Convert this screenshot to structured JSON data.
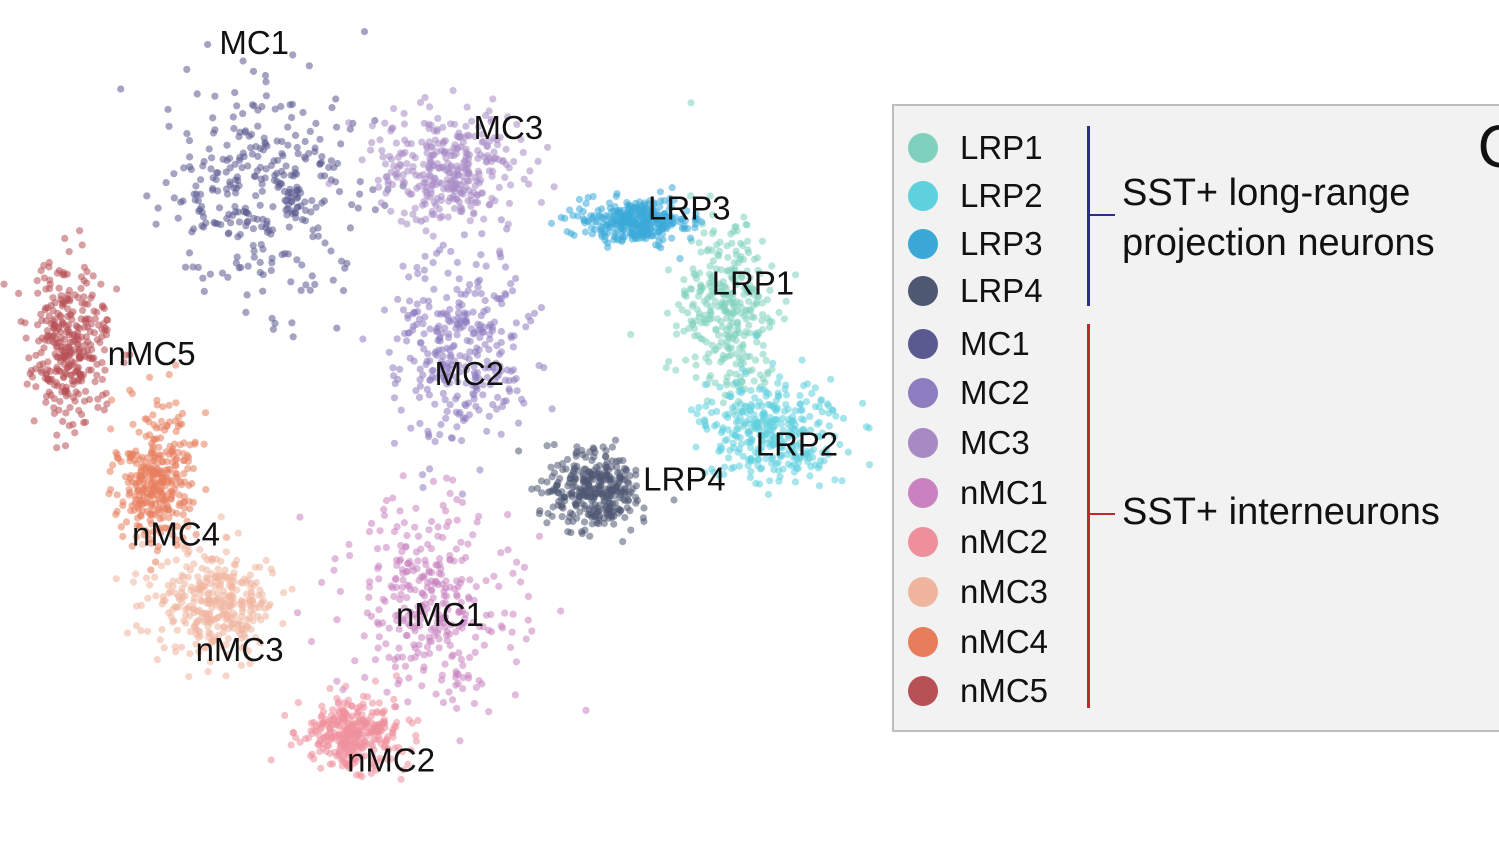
{
  "chart_data": {
    "type": "scatter",
    "title": "",
    "xlabel": "",
    "ylabel": "",
    "grid": false,
    "legend_placement": "right",
    "series": [
      {
        "name": "LRP1",
        "color": "#7fd1bd",
        "center": [
          7.45,
          3.1
        ],
        "spread": [
          0.45,
          0.9
        ]
      },
      {
        "name": "LRP2",
        "color": "#5fd0de",
        "center": [
          7.9,
          4.3
        ],
        "spread": [
          0.6,
          0.45
        ]
      },
      {
        "name": "LRP3",
        "color": "#3aa9d8",
        "center": [
          6.5,
          2.2
        ],
        "spread": [
          0.5,
          0.2
        ]
      },
      {
        "name": "LRP4",
        "color": "#4e5873",
        "center": [
          6.1,
          4.9
        ],
        "spread": [
          0.45,
          0.35
        ]
      },
      {
        "name": "MC1",
        "color": "#5a5a90",
        "center": [
          2.7,
          1.9
        ],
        "spread": [
          0.9,
          1.0
        ]
      },
      {
        "name": "MC2",
        "color": "#8e7cc0",
        "center": [
          4.7,
          3.5
        ],
        "spread": [
          0.6,
          0.9
        ]
      },
      {
        "name": "MC3",
        "color": "#a78ac4",
        "center": [
          4.6,
          1.7
        ],
        "spread": [
          0.7,
          0.5
        ]
      },
      {
        "name": "nMC1",
        "color": "#c982bf",
        "center": [
          4.4,
          6.0
        ],
        "spread": [
          0.8,
          0.9
        ]
      },
      {
        "name": "nMC2",
        "color": "#ee8f9c",
        "center": [
          3.6,
          7.3
        ],
        "spread": [
          0.5,
          0.3
        ]
      },
      {
        "name": "nMC3",
        "color": "#f0b59f",
        "center": [
          2.2,
          6.0
        ],
        "spread": [
          0.55,
          0.45
        ]
      },
      {
        "name": "nMC4",
        "color": "#e87d5c",
        "center": [
          1.6,
          4.8
        ],
        "spread": [
          0.35,
          0.6
        ]
      },
      {
        "name": "nMC5",
        "color": "#b85156",
        "center": [
          0.7,
          3.4
        ],
        "spread": [
          0.35,
          0.7
        ]
      }
    ],
    "xlim": [
      0,
      9
    ],
    "ylim": [
      0,
      8.6
    ],
    "annotations": [
      {
        "text": "MC1",
        "x": 2.6,
        "y": 0.45
      },
      {
        "text": "MC3",
        "x": 5.2,
        "y": 1.3
      },
      {
        "text": "LRP3",
        "x": 7.05,
        "y": 2.1
      },
      {
        "text": "LRP1",
        "x": 7.7,
        "y": 2.85
      },
      {
        "text": "nMC5",
        "x": 1.55,
        "y": 3.55
      },
      {
        "text": "MC2",
        "x": 4.8,
        "y": 3.75
      },
      {
        "text": "LRP2",
        "x": 8.15,
        "y": 4.45
      },
      {
        "text": "LRP4",
        "x": 7.0,
        "y": 4.8
      },
      {
        "text": "nMC4",
        "x": 1.8,
        "y": 5.35
      },
      {
        "text": "nMC1",
        "x": 4.5,
        "y": 6.15
      },
      {
        "text": "nMC3",
        "x": 2.45,
        "y": 6.5
      },
      {
        "text": "nMC2",
        "x": 4.0,
        "y": 7.6
      }
    ]
  },
  "legend": {
    "entries": [
      {
        "label": "LRP1",
        "color": "#7fd1bd"
      },
      {
        "label": "LRP2",
        "color": "#5fd0de"
      },
      {
        "label": "LRP3",
        "color": "#3aa9d8"
      },
      {
        "label": "LRP4",
        "color": "#4e5873"
      },
      {
        "label": "MC1",
        "color": "#5a5a90"
      },
      {
        "label": "MC2",
        "color": "#8e7cc0"
      },
      {
        "label": "MC3",
        "color": "#a78ac4"
      },
      {
        "label": "nMC1",
        "color": "#c982bf"
      },
      {
        "label": "nMC2",
        "color": "#ee8f9c"
      },
      {
        "label": "nMC3",
        "color": "#f0b59f"
      },
      {
        "label": "nMC4",
        "color": "#e87d5c"
      },
      {
        "label": "nMC5",
        "color": "#b85156"
      }
    ],
    "groups": [
      {
        "line1": "SST+ long-range",
        "line2": "projection neurons",
        "color": "#2b2f8a"
      },
      {
        "line1": "SST+ interneurons",
        "line2": "",
        "color": "#c0282d"
      }
    ]
  },
  "corner_glyph": "C"
}
